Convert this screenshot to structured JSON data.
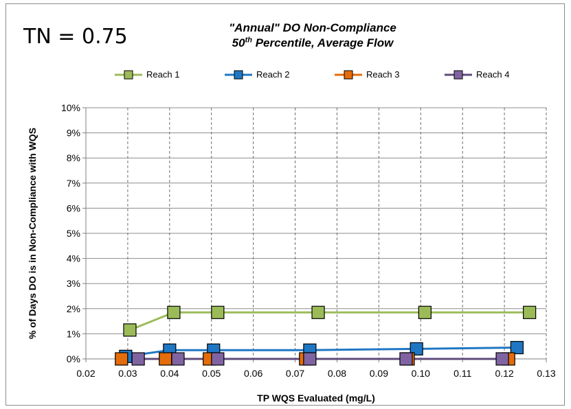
{
  "annotation": "TN = 0.75",
  "chart_data": {
    "type": "line",
    "title_line1": "\"Annual\" DO Non-Compliance",
    "title_line2_prefix": "50",
    "title_line2_sup": "th",
    "title_line2_suffix": " Percentile, Average Flow",
    "xlabel": "TP WQS Evaluated (mg/L)",
    "ylabel": "% of Days DO is in Non-Compliance with WQS",
    "xlim": [
      0.02,
      0.13
    ],
    "ylim": [
      0,
      10
    ],
    "x_ticks": [
      "0.02",
      "0.03",
      "0.04",
      "0.05",
      "0.06",
      "0.07",
      "0.08",
      "0.09",
      "0.10",
      "0.11",
      "0.12",
      "0.13"
    ],
    "y_ticks": [
      "0%",
      "1%",
      "2%",
      "3%",
      "4%",
      "5%",
      "6%",
      "7%",
      "8%",
      "9%",
      "10%"
    ],
    "grid": {
      "x": "dashed",
      "y": "solid"
    },
    "legend_position": "top",
    "series": [
      {
        "name": "Reach 1",
        "line_color": "#9bbb59",
        "marker_color": "#9bbb59",
        "x": [
          0.0305,
          0.041,
          0.0515,
          0.0755,
          0.101,
          0.126
        ],
        "y": [
          1.15,
          1.85,
          1.85,
          1.85,
          1.85,
          1.85
        ]
      },
      {
        "name": "Reach 2",
        "line_color": "#1f77c4",
        "marker_color": "#1f77c4",
        "x": [
          0.0295,
          0.04,
          0.0505,
          0.0735,
          0.099,
          0.123
        ],
        "y": [
          0.1,
          0.35,
          0.35,
          0.35,
          0.4,
          0.45
        ]
      },
      {
        "name": "Reach 3",
        "line_color": "#e46c0a",
        "marker_color": "#e46c0a",
        "x": [
          0.0285,
          0.039,
          0.0495,
          0.0725,
          0.097,
          0.121
        ],
        "y": [
          0.0,
          0.0,
          0.0,
          0.0,
          0.0,
          0.0
        ]
      },
      {
        "name": "Reach 4",
        "line_color": "#604a7b",
        "marker_color": "#8064a2",
        "x": [
          0.0325,
          0.042,
          0.0515,
          0.0735,
          0.0965,
          0.1195
        ],
        "y": [
          0.0,
          0.0,
          0.0,
          0.0,
          0.0,
          0.0
        ]
      }
    ]
  }
}
